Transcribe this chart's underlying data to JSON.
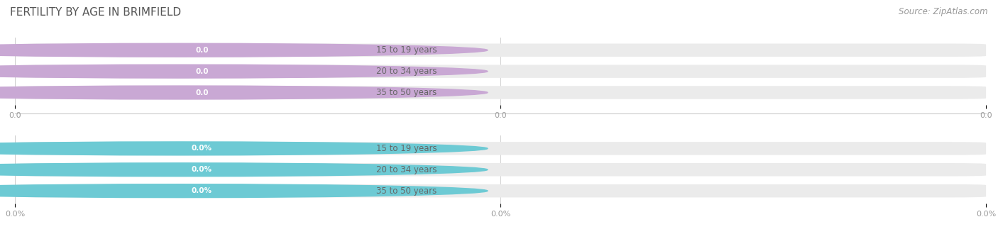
{
  "title": "FERTILITY BY AGE IN BRIMFIELD",
  "source": "Source: ZipAtlas.com",
  "top_section": {
    "categories": [
      "15 to 19 years",
      "20 to 34 years",
      "35 to 50 years"
    ],
    "values": [
      0.0,
      0.0,
      0.0
    ],
    "cap_color": "#c9a8d4",
    "badge_color": "#c9a8d4",
    "value_labels": [
      "0.0",
      "0.0",
      "0.0"
    ],
    "xtick_labels": [
      "0.0",
      "0.0",
      "0.0"
    ]
  },
  "bottom_section": {
    "categories": [
      "15 to 19 years",
      "20 to 34 years",
      "35 to 50 years"
    ],
    "values": [
      0.0,
      0.0,
      0.0
    ],
    "cap_color": "#6dcad4",
    "badge_color": "#6dcad4",
    "value_labels": [
      "0.0%",
      "0.0%",
      "0.0%"
    ],
    "xtick_labels": [
      "0.0%",
      "0.0%",
      "0.0%"
    ]
  },
  "bar_bg_color": "#ebebeb",
  "bar_text_color": "#666666",
  "title_color": "#555555",
  "source_color": "#999999",
  "title_fontsize": 11,
  "source_fontsize": 8.5,
  "label_fontsize": 8.5,
  "badge_fontsize": 7.5,
  "tick_fontsize": 8,
  "bar_height": 0.62,
  "figsize": [
    14.06,
    3.3
  ],
  "dpi": 100,
  "grid_color": "#cccccc",
  "separator_color": "#cccccc"
}
